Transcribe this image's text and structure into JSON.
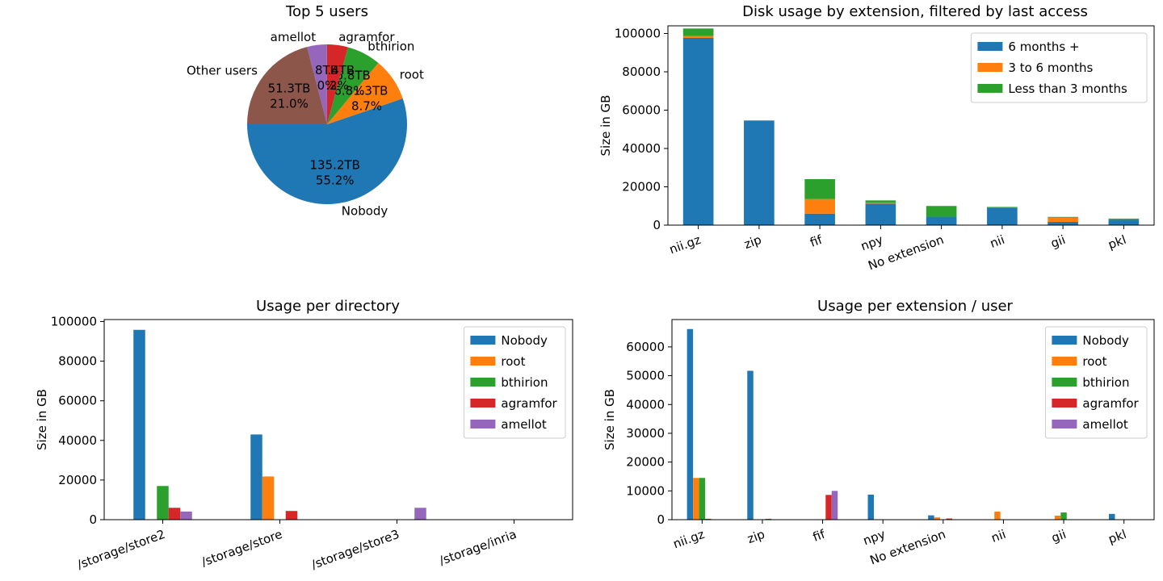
{
  "colors": {
    "blue": "#1f77b4",
    "orange": "#ff7f0e",
    "green": "#2ca02c",
    "red": "#d62728",
    "purple": "#9467bd",
    "brown": "#8c564b"
  },
  "chart_data": [
    {
      "type": "pie",
      "title": "Top 5 users",
      "slices": [
        {
          "label": "Nobody",
          "value": 135.2,
          "text": "135.2TB",
          "percent": "55.2%",
          "color": "#1f77b4"
        },
        {
          "label": "root",
          "value": 21.3,
          "text": "21.3TB",
          "percent": "8.7%",
          "color": "#ff7f0e"
        },
        {
          "label": "bthirion",
          "value": 16.8,
          "text": "16.8TB",
          "percent": "6.8%",
          "color": "#2ca02c"
        },
        {
          "label": "agramfor",
          "value": 10.4,
          "text": "10.4TB",
          "percent": "4.2%",
          "color": "#d62728"
        },
        {
          "label": "amellot",
          "value": 9.8,
          "text": "9.8TB",
          "percent": "4.0%",
          "color": "#9467bd"
        },
        {
          "label": "Other users",
          "value": 51.3,
          "text": "51.3TB",
          "percent": "21.0%",
          "color": "#8c564b"
        }
      ]
    },
    {
      "type": "bar",
      "stacked": true,
      "title": "Disk usage by extension, filtered by last access",
      "xlabel": "",
      "ylabel": "Size in GB",
      "ylim": [
        0,
        104000
      ],
      "yticks": [
        0,
        20000,
        40000,
        60000,
        80000,
        100000
      ],
      "categories": [
        "nii.gz",
        "zip",
        "fif",
        "npy",
        "No extension",
        "nii",
        "gii",
        "pkl"
      ],
      "legend_position": "top-right",
      "series": [
        {
          "name": "6 months +",
          "color": "#1f77b4",
          "values": [
            97700,
            54600,
            6000,
            11200,
            4400,
            8900,
            1700,
            2800
          ]
        },
        {
          "name": "3 to 6 months",
          "color": "#ff7f0e",
          "values": [
            1000,
            0,
            7600,
            600,
            0,
            0,
            2200,
            0
          ]
        },
        {
          "name": "Less than 3 months",
          "color": "#2ca02c",
          "values": [
            3900,
            0,
            10400,
            1100,
            5600,
            600,
            400,
            600
          ]
        }
      ]
    },
    {
      "type": "bar",
      "stacked": false,
      "title": "Usage per directory",
      "xlabel": "",
      "ylabel": "Size in GB",
      "ylim": [
        0,
        101000
      ],
      "yticks": [
        0,
        20000,
        40000,
        60000,
        80000,
        100000
      ],
      "categories": [
        "/storage/store2",
        "/storage/store",
        "/storage/store3",
        "/storage/inria"
      ],
      "legend_position": "top-right",
      "series": [
        {
          "name": "Nobody",
          "color": "#1f77b4",
          "values": [
            95800,
            43000,
            0,
            0
          ]
        },
        {
          "name": "root",
          "color": "#ff7f0e",
          "values": [
            0,
            21800,
            0,
            0
          ]
        },
        {
          "name": "bthirion",
          "color": "#2ca02c",
          "values": [
            17000,
            0,
            0,
            0
          ]
        },
        {
          "name": "agramfor",
          "color": "#d62728",
          "values": [
            6000,
            4400,
            0,
            0
          ]
        },
        {
          "name": "amellot",
          "color": "#9467bd",
          "values": [
            4100,
            0,
            6000,
            0
          ]
        }
      ]
    },
    {
      "type": "bar",
      "stacked": false,
      "title": "Usage per extension / user",
      "xlabel": "",
      "ylabel": "Size in GB",
      "ylim": [
        0,
        69500
      ],
      "yticks": [
        0,
        10000,
        20000,
        30000,
        40000,
        50000,
        60000
      ],
      "categories": [
        "nii.gz",
        "zip",
        "fif",
        "npy",
        "No extension",
        "nii",
        "gii",
        "pkl"
      ],
      "legend_position": "top-right",
      "series": [
        {
          "name": "Nobody",
          "color": "#1f77b4",
          "values": [
            66200,
            51700,
            0,
            8700,
            1500,
            0,
            0,
            2000
          ]
        },
        {
          "name": "root",
          "color": "#ff7f0e",
          "values": [
            14500,
            0,
            0,
            0,
            800,
            2800,
            1400,
            0
          ]
        },
        {
          "name": "bthirion",
          "color": "#2ca02c",
          "values": [
            14500,
            0,
            0,
            0,
            0,
            0,
            2500,
            0
          ]
        },
        {
          "name": "agramfor",
          "color": "#d62728",
          "values": [
            300,
            300,
            8600,
            0,
            400,
            0,
            0,
            0
          ]
        },
        {
          "name": "amellot",
          "color": "#9467bd",
          "values": [
            0,
            0,
            10000,
            0,
            0,
            0,
            0,
            0
          ]
        }
      ]
    }
  ]
}
